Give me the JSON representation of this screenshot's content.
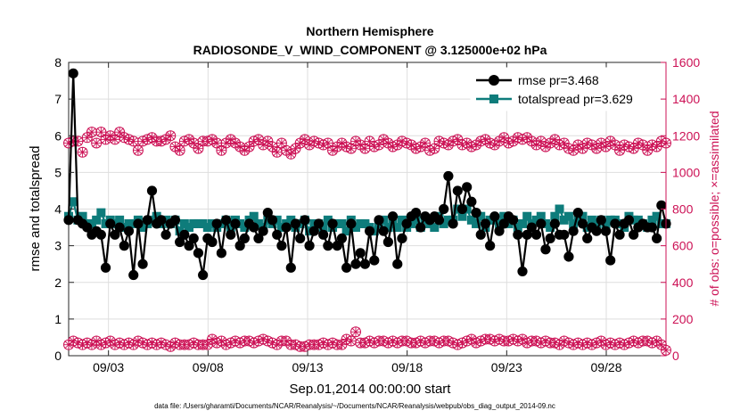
{
  "chart_data": {
    "type": "line",
    "title": "Northern Hemisphere",
    "subtitle": "RADIOSONDE_V_WIND_COMPONENT @ 3.125000e+02 hPa",
    "xlabel": "Sep.01,2014 00:00:00 start",
    "ylabel": "rmse and totalspread",
    "y2label": "# of obs: o=possible; ×=assimilated",
    "footer": "data file: /Users/gharamti/Documents/NCAR/Reanalysis/~/Documents/NCAR/Reanalysis/webpub/obs_diag_output_2014-09.nc",
    "xlim": [
      1.0,
      31.0
    ],
    "ylim": [
      0,
      8
    ],
    "y2lim": [
      0,
      1600
    ],
    "x_ticks": [
      3,
      8,
      13,
      18,
      23,
      28
    ],
    "x_tick_labels": [
      "09/03",
      "09/08",
      "09/13",
      "09/18",
      "09/23",
      "09/28"
    ],
    "y_ticks": [
      "0",
      "1",
      "2",
      "3",
      "4",
      "5",
      "6",
      "7",
      "8"
    ],
    "y2_ticks": [
      "0",
      "200",
      "400",
      "600",
      "800",
      "1000",
      "1200",
      "1400",
      "1600"
    ],
    "legend": {
      "placement": "top-right",
      "entries": [
        "rmse pr=3.468",
        "totalspread pr=3.629"
      ]
    },
    "colors": {
      "rmse": "#000000",
      "totalspread": "#0e7c7b",
      "obs": "#cc1155",
      "grid": "#dedede"
    },
    "series": [
      {
        "name": "rmse",
        "axis": "left",
        "marker": "circle",
        "values": [
          3.7,
          7.7,
          3.7,
          3.6,
          3.5,
          3.3,
          3.4,
          3.3,
          2.4,
          3.6,
          3.3,
          3.5,
          3.0,
          3.4,
          2.2,
          3.6,
          2.5,
          3.7,
          4.5,
          3.6,
          3.7,
          3.3,
          3.6,
          3.7,
          3.1,
          3.3,
          3.0,
          3.2,
          2.8,
          2.2,
          3.2,
          3.1,
          3.6,
          2.8,
          3.7,
          3.3,
          3.6,
          3.0,
          3.2,
          3.6,
          3.5,
          3.2,
          3.4,
          3.9,
          3.7,
          3.3,
          3.0,
          3.5,
          2.4,
          3.6,
          3.2,
          3.7,
          3.0,
          3.4,
          3.6,
          3.3,
          3.0,
          3.6,
          3.0,
          3.2,
          2.4,
          3.6,
          2.5,
          2.8,
          2.5,
          3.4,
          2.6,
          3.7,
          3.4,
          3.1,
          3.8,
          2.5,
          3.2,
          3.6,
          3.8,
          3.9,
          3.5,
          3.8,
          3.7,
          3.8,
          3.7,
          4.0,
          4.9,
          3.6,
          4.5,
          4.0,
          4.6,
          4.2,
          3.9,
          3.3,
          3.6,
          3.0,
          3.8,
          3.4,
          3.6,
          3.8,
          3.7,
          3.3,
          2.3,
          3.3,
          3.5,
          3.3,
          3.6,
          2.9,
          3.2,
          3.6,
          3.3,
          3.3,
          2.7,
          3.4,
          3.9,
          3.6,
          3.2,
          3.5,
          3.4,
          3.7,
          3.4,
          2.6,
          3.6,
          3.3,
          3.6,
          3.7,
          3.3,
          3.5,
          3.6,
          3.5,
          3.5,
          3.2,
          4.1,
          3.6
        ],
        "label": "rmse pr=3.468"
      },
      {
        "name": "totalspread",
        "axis": "left",
        "marker": "square",
        "values": [
          3.8,
          4.2,
          3.7,
          3.8,
          3.6,
          3.6,
          3.7,
          3.9,
          3.6,
          3.7,
          3.6,
          3.7,
          3.5,
          3.6,
          3.6,
          3.7,
          3.5,
          3.6,
          3.7,
          3.8,
          3.6,
          3.7,
          3.6,
          3.7,
          3.4,
          3.6,
          3.5,
          3.6,
          3.6,
          3.6,
          3.5,
          3.6,
          3.5,
          3.6,
          3.7,
          3.5,
          3.7,
          3.6,
          3.5,
          3.7,
          3.8,
          3.6,
          3.5,
          3.7,
          3.6,
          3.7,
          3.5,
          3.6,
          3.7,
          3.5,
          3.6,
          3.7,
          3.4,
          3.6,
          3.6,
          3.5,
          3.7,
          3.5,
          3.6,
          3.6,
          3.4,
          3.7,
          3.5,
          3.6,
          3.6,
          3.5,
          3.4,
          3.6,
          3.7,
          3.5,
          3.6,
          3.5,
          3.7,
          3.5,
          3.6,
          3.7,
          3.5,
          3.7,
          3.6,
          3.5,
          3.8,
          3.6,
          3.7,
          3.7,
          4.0,
          3.8,
          4.0,
          3.7,
          3.6,
          3.8,
          3.5,
          3.7,
          3.7,
          3.6,
          3.8,
          3.6,
          3.7,
          3.5,
          3.6,
          3.8,
          3.6,
          3.7,
          3.8,
          3.6,
          3.5,
          3.8,
          4.0,
          3.7,
          3.8,
          3.6,
          3.7,
          3.8,
          3.5,
          3.7,
          3.6,
          3.7,
          3.6,
          3.7,
          3.7,
          3.6,
          3.5,
          3.8,
          3.7,
          3.7,
          3.6,
          3.5,
          3.7,
          3.8,
          3.6,
          3.6
        ],
        "label": "totalspread pr=3.629"
      },
      {
        "name": "obs possible (upper)",
        "axis": "right",
        "marker": "circle-open",
        "values": [
          1160,
          1170,
          1170,
          1110,
          1190,
          1220,
          1160,
          1220,
          1180,
          1200,
          1180,
          1220,
          1190,
          1180,
          1170,
          1120,
          1170,
          1180,
          1190,
          1170,
          1170,
          1180,
          1200,
          1140,
          1120,
          1170,
          1180,
          1160,
          1130,
          1170,
          1170,
          1180,
          1160,
          1120,
          1160,
          1180,
          1160,
          1140,
          1120,
          1140,
          1170,
          1180,
          1150,
          1170,
          1140,
          1110,
          1160,
          1120,
          1100,
          1130,
          1160,
          1180,
          1150,
          1170,
          1160,
          1150,
          1160,
          1120,
          1140,
          1160,
          1140,
          1130,
          1170,
          1150,
          1130,
          1170,
          1140,
          1150,
          1180,
          1160,
          1140,
          1150,
          1170,
          1160,
          1150,
          1130,
          1140,
          1160,
          1120,
          1130,
          1170,
          1160,
          1150,
          1170,
          1180,
          1150,
          1160,
          1140,
          1150,
          1170,
          1180,
          1160,
          1150,
          1170,
          1190,
          1160,
          1170,
          1190,
          1180,
          1190,
          1170,
          1150,
          1170,
          1140,
          1160,
          1180,
          1150,
          1160,
          1130,
          1120,
          1150,
          1130,
          1160,
          1150,
          1130,
          1160,
          1140,
          1170,
          1150,
          1120,
          1150,
          1140,
          1130,
          1160,
          1150,
          1120,
          1150,
          1140,
          1170,
          1160
        ],
        "label": ""
      },
      {
        "name": "obs possible (lower)",
        "axis": "right",
        "marker": "circle-open",
        "values": [
          60,
          80,
          70,
          60,
          70,
          60,
          80,
          60,
          70,
          80,
          60,
          70,
          60,
          70,
          60,
          80,
          70,
          60,
          70,
          60,
          70,
          60,
          50,
          70,
          60,
          60,
          60,
          70,
          60,
          60,
          60,
          90,
          70,
          80,
          60,
          70,
          80,
          70,
          80,
          80,
          70,
          80,
          90,
          80,
          70,
          60,
          80,
          80,
          60,
          60,
          50,
          50,
          60,
          60,
          60,
          70,
          60,
          70,
          60,
          60,
          90,
          80,
          130,
          70,
          70,
          80,
          70,
          80,
          80,
          70,
          80,
          70,
          80,
          80,
          70,
          70,
          80,
          70,
          80,
          80,
          70,
          80,
          80,
          70,
          60,
          70,
          80,
          90,
          70,
          80,
          90,
          90,
          80,
          90,
          80,
          80,
          90,
          80,
          90,
          70,
          80,
          80,
          70,
          80,
          70,
          70,
          60,
          80,
          70,
          60,
          70,
          60,
          70,
          60,
          70,
          80,
          60,
          70,
          60,
          70,
          60,
          70,
          80,
          70,
          80,
          80,
          70,
          80,
          60,
          30
        ],
        "label": ""
      }
    ]
  }
}
